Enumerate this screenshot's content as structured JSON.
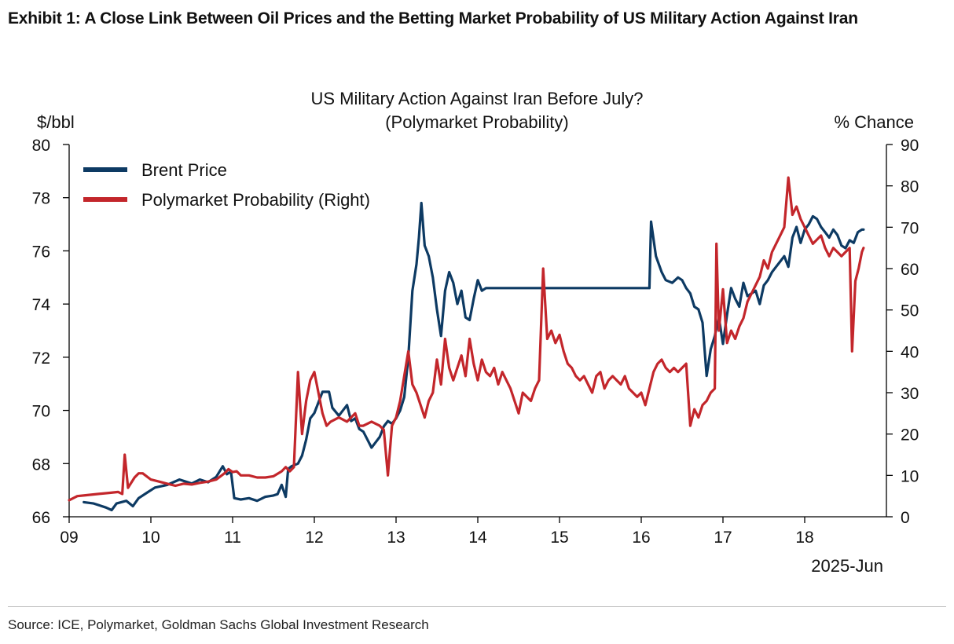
{
  "exhibit": {
    "title": "Exhibit 1: A Close Link Between Oil Prices and the Betting Market Probability of US Military Action Against Iran",
    "source": "Source: ICE, Polymarket, Goldman Sachs Global Investment Research"
  },
  "colors": {
    "brent": "#0d3a63",
    "polymarket": "#c3262b",
    "axis": "#000000"
  },
  "chart_data": {
    "type": "line",
    "title": "US Military Action Against Iran Before July?",
    "subtitle": "(Polymarket Probability)",
    "xlabel": "2025-Jun",
    "ylabel_left": "$/bbl",
    "ylabel_right": "% Chance",
    "xlim": [
      9,
      19
    ],
    "ylim_left": [
      66,
      80
    ],
    "ylim_right": [
      0,
      90
    ],
    "x_ticks": [
      9,
      10,
      11,
      12,
      13,
      14,
      15,
      16,
      17,
      18
    ],
    "x_tick_labels": [
      "09",
      "10",
      "11",
      "12",
      "13",
      "14",
      "15",
      "16",
      "17",
      "18"
    ],
    "y_left_ticks": [
      66,
      68,
      70,
      72,
      74,
      76,
      78,
      80
    ],
    "y_right_ticks": [
      0,
      10,
      20,
      30,
      40,
      50,
      60,
      70,
      80,
      90
    ],
    "grid": false,
    "legend_position": "top-left",
    "series": [
      {
        "name": "Brent Price",
        "axis": "left",
        "points": [
          [
            9.18,
            66.55
          ],
          [
            9.3,
            66.5
          ],
          [
            9.45,
            66.35
          ],
          [
            9.52,
            66.25
          ],
          [
            9.58,
            66.5
          ],
          [
            9.7,
            66.6
          ],
          [
            9.78,
            66.4
          ],
          [
            9.85,
            66.7
          ],
          [
            9.95,
            66.9
          ],
          [
            10.05,
            67.1
          ],
          [
            10.2,
            67.2
          ],
          [
            10.35,
            67.4
          ],
          [
            10.5,
            67.25
          ],
          [
            10.6,
            67.4
          ],
          [
            10.7,
            67.3
          ],
          [
            10.8,
            67.5
          ],
          [
            10.88,
            67.9
          ],
          [
            10.93,
            67.6
          ],
          [
            10.98,
            67.7
          ],
          [
            11.02,
            66.7
          ],
          [
            11.1,
            66.65
          ],
          [
            11.2,
            66.7
          ],
          [
            11.3,
            66.6
          ],
          [
            11.4,
            66.75
          ],
          [
            11.5,
            66.8
          ],
          [
            11.55,
            66.85
          ],
          [
            11.6,
            67.2
          ],
          [
            11.65,
            66.75
          ],
          [
            11.68,
            67.8
          ],
          [
            11.72,
            67.9
          ],
          [
            11.8,
            68.0
          ],
          [
            11.85,
            68.3
          ],
          [
            11.9,
            68.9
          ],
          [
            11.95,
            69.7
          ],
          [
            12.0,
            69.9
          ],
          [
            12.05,
            70.3
          ],
          [
            12.1,
            70.7
          ],
          [
            12.18,
            70.7
          ],
          [
            12.22,
            70.1
          ],
          [
            12.3,
            69.8
          ],
          [
            12.4,
            70.2
          ],
          [
            12.45,
            69.6
          ],
          [
            12.5,
            69.7
          ],
          [
            12.55,
            69.3
          ],
          [
            12.6,
            69.2
          ],
          [
            12.65,
            68.9
          ],
          [
            12.7,
            68.6
          ],
          [
            12.75,
            68.8
          ],
          [
            12.8,
            69.0
          ],
          [
            12.85,
            69.4
          ],
          [
            12.9,
            69.6
          ],
          [
            12.95,
            69.5
          ],
          [
            13.0,
            69.7
          ],
          [
            13.05,
            70.0
          ],
          [
            13.1,
            70.5
          ],
          [
            13.15,
            72.0
          ],
          [
            13.2,
            74.5
          ],
          [
            13.25,
            75.5
          ],
          [
            13.28,
            76.5
          ],
          [
            13.31,
            77.8
          ],
          [
            13.35,
            76.2
          ],
          [
            13.4,
            75.8
          ],
          [
            13.45,
            75.0
          ],
          [
            13.5,
            73.8
          ],
          [
            13.55,
            72.8
          ],
          [
            13.6,
            74.5
          ],
          [
            13.65,
            75.2
          ],
          [
            13.7,
            74.8
          ],
          [
            13.75,
            74.0
          ],
          [
            13.8,
            74.5
          ],
          [
            13.85,
            73.5
          ],
          [
            13.9,
            73.4
          ],
          [
            13.95,
            74.2
          ],
          [
            14.0,
            74.9
          ],
          [
            14.05,
            74.5
          ],
          [
            14.1,
            74.6
          ],
          [
            16.1,
            74.6
          ],
          [
            16.12,
            77.1
          ],
          [
            16.18,
            75.8
          ],
          [
            16.25,
            75.2
          ],
          [
            16.3,
            74.9
          ],
          [
            16.38,
            74.8
          ],
          [
            16.45,
            75.0
          ],
          [
            16.5,
            74.9
          ],
          [
            16.55,
            74.6
          ],
          [
            16.6,
            74.4
          ],
          [
            16.65,
            73.9
          ],
          [
            16.7,
            73.8
          ],
          [
            16.75,
            73.3
          ],
          [
            16.8,
            71.3
          ],
          [
            16.85,
            72.3
          ],
          [
            16.9,
            72.8
          ],
          [
            16.95,
            73.5
          ],
          [
            17.0,
            72.5
          ],
          [
            17.05,
            73.6
          ],
          [
            17.1,
            74.6
          ],
          [
            17.15,
            74.2
          ],
          [
            17.2,
            73.9
          ],
          [
            17.25,
            74.8
          ],
          [
            17.3,
            74.3
          ],
          [
            17.35,
            74.4
          ],
          [
            17.4,
            74.5
          ],
          [
            17.45,
            74.0
          ],
          [
            17.5,
            74.7
          ],
          [
            17.55,
            74.9
          ],
          [
            17.6,
            75.2
          ],
          [
            17.65,
            75.4
          ],
          [
            17.7,
            75.6
          ],
          [
            17.75,
            75.8
          ],
          [
            17.8,
            75.4
          ],
          [
            17.85,
            76.5
          ],
          [
            17.9,
            76.9
          ],
          [
            17.95,
            76.3
          ],
          [
            18.0,
            76.8
          ],
          [
            18.05,
            77.0
          ],
          [
            18.1,
            77.3
          ],
          [
            18.15,
            77.2
          ],
          [
            18.2,
            76.9
          ],
          [
            18.25,
            76.7
          ],
          [
            18.3,
            76.5
          ],
          [
            18.35,
            76.8
          ],
          [
            18.4,
            76.6
          ],
          [
            18.45,
            76.2
          ],
          [
            18.5,
            76.1
          ],
          [
            18.55,
            76.4
          ],
          [
            18.6,
            76.3
          ],
          [
            18.65,
            76.7
          ],
          [
            18.7,
            76.8
          ],
          [
            18.72,
            76.8
          ]
        ]
      },
      {
        "name": "Polymarket Probability (Right)",
        "axis": "right",
        "points": [
          [
            9.0,
            4
          ],
          [
            9.1,
            5
          ],
          [
            9.2,
            5.2
          ],
          [
            9.35,
            5.5
          ],
          [
            9.5,
            5.8
          ],
          [
            9.6,
            6
          ],
          [
            9.65,
            5.5
          ],
          [
            9.68,
            15
          ],
          [
            9.72,
            7
          ],
          [
            9.8,
            9.5
          ],
          [
            9.85,
            10.5
          ],
          [
            9.9,
            10.5
          ],
          [
            10.0,
            9
          ],
          [
            10.1,
            8.5
          ],
          [
            10.2,
            8
          ],
          [
            10.3,
            7.5
          ],
          [
            10.4,
            8
          ],
          [
            10.5,
            7.8
          ],
          [
            10.6,
            8.2
          ],
          [
            10.7,
            8.5
          ],
          [
            10.8,
            9
          ],
          [
            10.9,
            10.5
          ],
          [
            10.95,
            11.5
          ],
          [
            11.0,
            10.8
          ],
          [
            11.05,
            11
          ],
          [
            11.1,
            10
          ],
          [
            11.2,
            10
          ],
          [
            11.3,
            9.5
          ],
          [
            11.4,
            9.5
          ],
          [
            11.5,
            9.8
          ],
          [
            11.6,
            11
          ],
          [
            11.65,
            12
          ],
          [
            11.7,
            11
          ],
          [
            11.75,
            12
          ],
          [
            11.8,
            35
          ],
          [
            11.85,
            20
          ],
          [
            11.9,
            28
          ],
          [
            11.95,
            33
          ],
          [
            12.0,
            35
          ],
          [
            12.05,
            30
          ],
          [
            12.1,
            25
          ],
          [
            12.15,
            22
          ],
          [
            12.2,
            23
          ],
          [
            12.3,
            24
          ],
          [
            12.4,
            23
          ],
          [
            12.5,
            25
          ],
          [
            12.55,
            22
          ],
          [
            12.6,
            22
          ],
          [
            12.7,
            23
          ],
          [
            12.8,
            22
          ],
          [
            12.85,
            21
          ],
          [
            12.9,
            10
          ],
          [
            12.95,
            22
          ],
          [
            13.0,
            24
          ],
          [
            13.05,
            28
          ],
          [
            13.1,
            34
          ],
          [
            13.15,
            40
          ],
          [
            13.2,
            32
          ],
          [
            13.25,
            30
          ],
          [
            13.3,
            27
          ],
          [
            13.35,
            24
          ],
          [
            13.4,
            28
          ],
          [
            13.45,
            30
          ],
          [
            13.5,
            38
          ],
          [
            13.55,
            32
          ],
          [
            13.6,
            43
          ],
          [
            13.65,
            36
          ],
          [
            13.7,
            33
          ],
          [
            13.75,
            36
          ],
          [
            13.8,
            39
          ],
          [
            13.85,
            34
          ],
          [
            13.9,
            43
          ],
          [
            13.95,
            37
          ],
          [
            14.0,
            33
          ],
          [
            14.05,
            38
          ],
          [
            14.1,
            35
          ],
          [
            14.15,
            34
          ],
          [
            14.2,
            36
          ],
          [
            14.25,
            32
          ],
          [
            14.3,
            35
          ],
          [
            14.35,
            33
          ],
          [
            14.4,
            31
          ],
          [
            14.45,
            28
          ],
          [
            14.5,
            25
          ],
          [
            14.55,
            30
          ],
          [
            14.6,
            29
          ],
          [
            14.65,
            28
          ],
          [
            14.7,
            31
          ],
          [
            14.75,
            33
          ],
          [
            14.8,
            60
          ],
          [
            14.85,
            43
          ],
          [
            14.9,
            45
          ],
          [
            14.95,
            42
          ],
          [
            15.0,
            44
          ],
          [
            15.05,
            40
          ],
          [
            15.1,
            37
          ],
          [
            15.15,
            36
          ],
          [
            15.2,
            34
          ],
          [
            15.25,
            33
          ],
          [
            15.3,
            34
          ],
          [
            15.35,
            32
          ],
          [
            15.4,
            30
          ],
          [
            15.45,
            34
          ],
          [
            15.5,
            35
          ],
          [
            15.55,
            31
          ],
          [
            15.6,
            33
          ],
          [
            15.65,
            34
          ],
          [
            15.7,
            33
          ],
          [
            15.75,
            32
          ],
          [
            15.8,
            34
          ],
          [
            15.85,
            31
          ],
          [
            15.9,
            30
          ],
          [
            15.95,
            29
          ],
          [
            16.0,
            30
          ],
          [
            16.05,
            27
          ],
          [
            16.1,
            31
          ],
          [
            16.15,
            35
          ],
          [
            16.2,
            37
          ],
          [
            16.25,
            38
          ],
          [
            16.3,
            36
          ],
          [
            16.35,
            35
          ],
          [
            16.4,
            36
          ],
          [
            16.45,
            35
          ],
          [
            16.5,
            36
          ],
          [
            16.55,
            37
          ],
          [
            16.6,
            22
          ],
          [
            16.65,
            26
          ],
          [
            16.7,
            24
          ],
          [
            16.75,
            27
          ],
          [
            16.8,
            28
          ],
          [
            16.85,
            30
          ],
          [
            16.9,
            31
          ],
          [
            16.92,
            66
          ],
          [
            16.95,
            45
          ],
          [
            17.0,
            55
          ],
          [
            17.05,
            42
          ],
          [
            17.1,
            45
          ],
          [
            17.15,
            43
          ],
          [
            17.2,
            46
          ],
          [
            17.25,
            48
          ],
          [
            17.3,
            52
          ],
          [
            17.35,
            54
          ],
          [
            17.4,
            56
          ],
          [
            17.45,
            58
          ],
          [
            17.5,
            62
          ],
          [
            17.55,
            60
          ],
          [
            17.6,
            64
          ],
          [
            17.65,
            66
          ],
          [
            17.7,
            68
          ],
          [
            17.75,
            70
          ],
          [
            17.8,
            82
          ],
          [
            17.85,
            73
          ],
          [
            17.9,
            75
          ],
          [
            17.95,
            72
          ],
          [
            18.0,
            70
          ],
          [
            18.05,
            68
          ],
          [
            18.1,
            66
          ],
          [
            18.15,
            67
          ],
          [
            18.2,
            68
          ],
          [
            18.25,
            65
          ],
          [
            18.3,
            63
          ],
          [
            18.35,
            65
          ],
          [
            18.4,
            64
          ],
          [
            18.45,
            63
          ],
          [
            18.5,
            64
          ],
          [
            18.55,
            65
          ],
          [
            18.58,
            40
          ],
          [
            18.62,
            57
          ],
          [
            18.66,
            60
          ],
          [
            18.7,
            64
          ],
          [
            18.72,
            65
          ]
        ]
      }
    ]
  }
}
